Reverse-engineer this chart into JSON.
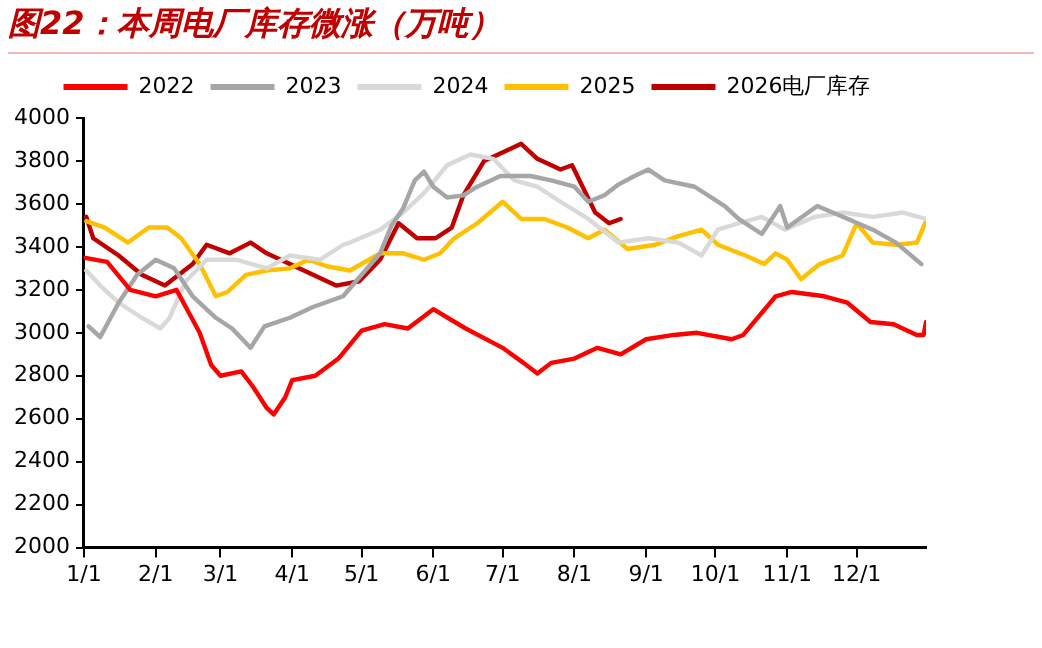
{
  "chart_data": {
    "type": "line",
    "title": "图22：本周电厂库存微涨（万吨）",
    "xlim": [
      "--01-01",
      "--12-31"
    ],
    "xticks": [
      {
        "value": "--01-01",
        "label": "1/1"
      },
      {
        "value": "--02-01",
        "label": "2/1"
      },
      {
        "value": "--03-01",
        "label": "3/1"
      },
      {
        "value": "--04-01",
        "label": "4/1"
      },
      {
        "value": "--05-01",
        "label": "5/1"
      },
      {
        "value": "--06-01",
        "label": "6/1"
      },
      {
        "value": "--07-01",
        "label": "7/1"
      },
      {
        "value": "--08-01",
        "label": "8/1"
      },
      {
        "value": "--09-01",
        "label": "9/1"
      },
      {
        "value": "--10-01",
        "label": "10/1"
      },
      {
        "value": "--11-01",
        "label": "11/1"
      },
      {
        "value": "--12-01",
        "label": "12/1"
      }
    ],
    "ylim": [
      2000,
      4000
    ],
    "yticks": [
      2000,
      2200,
      2400,
      2600,
      2800,
      3000,
      3200,
      3400,
      3600,
      3800,
      4000
    ],
    "grid": false,
    "legend": "top",
    "marker": "none",
    "line_style": "solid",
    "series": [
      {
        "name": "2022",
        "color": "#ff0000",
        "x": [
          "--01-01",
          "--01-11",
          "--01-21",
          "--02-01",
          "--02-10",
          "--02-15",
          "--02-20",
          "--02-25",
          "--03-01",
          "--03-10",
          "--03-15",
          "--03-21",
          "--03-24",
          "--03-29",
          "--04-01",
          "--04-11",
          "--04-21",
          "--05-01",
          "--05-11",
          "--05-21",
          "--06-01",
          "--06-15",
          "--07-01",
          "--07-10",
          "--07-16",
          "--07-22",
          "--08-01",
          "--08-11",
          "--08-21",
          "--09-01",
          "--09-13",
          "--09-23",
          "--10-08",
          "--10-13",
          "--10-27",
          "--11-03",
          "--11-17",
          "--11-27",
          "--12-07",
          "--12-17",
          "--12-27",
          "--12-30",
          "--12-31"
        ],
        "values": [
          3350,
          3330,
          3200,
          3170,
          3200,
          3100,
          3000,
          2850,
          2800,
          2820,
          2750,
          2650,
          2620,
          2700,
          2780,
          2800,
          2880,
          3010,
          3040,
          3020,
          3110,
          3020,
          2930,
          2860,
          2810,
          2860,
          2880,
          2930,
          2900,
          2970,
          2990,
          3000,
          2970,
          2990,
          3170,
          3190,
          3170,
          3140,
          3050,
          3040,
          2990,
          2990,
          3050
        ]
      },
      {
        "name": "2023",
        "color": "#a6a6a6",
        "x": [
          "--01-03",
          "--01-08",
          "--01-16",
          "--01-24",
          "--02-01",
          "--02-09",
          "--02-17",
          "--02-27",
          "--03-06",
          "--03-14",
          "--03-20",
          "--03-31",
          "--04-10",
          "--04-23",
          "--05-09",
          "--05-14",
          "--05-19",
          "--05-24",
          "--05-28",
          "--06-01",
          "--06-07",
          "--06-14",
          "--06-20",
          "--06-30",
          "--07-06",
          "--07-13",
          "--07-22",
          "--08-01",
          "--08-07",
          "--08-14",
          "--08-20",
          "--08-27",
          "--09-02",
          "--09-09",
          "--09-22",
          "--10-05",
          "--10-11",
          "--10-21",
          "--10-29",
          "--11-01",
          "--11-14",
          "--11-25",
          "--12-08",
          "--12-18",
          "--12-29"
        ],
        "values": [
          3030,
          2980,
          3140,
          3270,
          3340,
          3300,
          3170,
          3070,
          3020,
          2930,
          3030,
          3070,
          3120,
          3170,
          3370,
          3500,
          3580,
          3710,
          3750,
          3680,
          3630,
          3640,
          3680,
          3730,
          3730,
          3730,
          3710,
          3680,
          3610,
          3640,
          3690,
          3730,
          3760,
          3710,
          3680,
          3590,
          3530,
          3460,
          3590,
          3490,
          3590,
          3540,
          3480,
          3420,
          3320
        ]
      },
      {
        "name": "2024",
        "color": "#d9d9d9",
        "x": [
          "--01-02",
          "--01-08",
          "--01-16",
          "--01-26",
          "--02-03",
          "--02-07",
          "--02-14",
          "--02-23",
          "--03-08",
          "--03-21",
          "--03-31",
          "--04-13",
          "--04-23",
          "--04-26",
          "--05-09",
          "--05-19",
          "--05-28",
          "--06-07",
          "--06-17",
          "--06-27",
          "--07-06",
          "--07-16",
          "--07-26",
          "--08-07",
          "--08-20",
          "--09-02",
          "--09-15",
          "--09-25",
          "--10-02",
          "--10-11",
          "--10-21",
          "--10-31",
          "--11-13",
          "--11-25",
          "--12-08",
          "--12-21",
          "--12-31"
        ],
        "values": [
          3290,
          3220,
          3140,
          3070,
          3020,
          3070,
          3240,
          3340,
          3340,
          3300,
          3360,
          3340,
          3410,
          3420,
          3480,
          3560,
          3650,
          3780,
          3830,
          3810,
          3710,
          3680,
          3610,
          3530,
          3420,
          3440,
          3420,
          3360,
          3480,
          3510,
          3540,
          3480,
          3540,
          3560,
          3540,
          3560,
          3530
        ]
      },
      {
        "name": "2025",
        "color": "#ffc000",
        "x": [
          "--01-02",
          "--01-10",
          "--01-20",
          "--01-29",
          "--02-06",
          "--02-12",
          "--02-20",
          "--02-27",
          "--03-04",
          "--03-12",
          "--03-21",
          "--03-31",
          "--04-08",
          "--04-16",
          "--04-26",
          "--05-09",
          "--05-19",
          "--05-28",
          "--06-04",
          "--06-10",
          "--06-20",
          "--07-01",
          "--07-09",
          "--07-19",
          "--07-29",
          "--08-07",
          "--08-14",
          "--08-24",
          "--09-05",
          "--09-15",
          "--09-25",
          "--10-02",
          "--10-14",
          "--10-22",
          "--10-27",
          "--11-01",
          "--11-07",
          "--11-15",
          "--11-25",
          "--12-01",
          "--12-08",
          "--12-18",
          "--12-27",
          "--12-31"
        ],
        "values": [
          3520,
          3490,
          3420,
          3490,
          3490,
          3440,
          3320,
          3170,
          3190,
          3270,
          3290,
          3300,
          3340,
          3310,
          3290,
          3370,
          3370,
          3340,
          3370,
          3440,
          3510,
          3610,
          3530,
          3530,
          3490,
          3440,
          3480,
          3390,
          3410,
          3450,
          3480,
          3410,
          3360,
          3320,
          3370,
          3340,
          3250,
          3320,
          3360,
          3510,
          3420,
          3410,
          3420,
          3520
        ]
      },
      {
        "name": "2026电厂库存",
        "color": "#c00000",
        "x": [
          "--01-02",
          "--01-05",
          "--01-16",
          "--01-26",
          "--02-05",
          "--02-11",
          "--02-17",
          "--02-23",
          "--03-05",
          "--03-14",
          "--03-21",
          "--03-31",
          "--04-10",
          "--04-20",
          "--04-30",
          "--05-09",
          "--05-17",
          "--05-25",
          "--06-02",
          "--06-09",
          "--06-14",
          "--06-23",
          "--07-03",
          "--07-09",
          "--07-16",
          "--07-26",
          "--07-31",
          "--08-10",
          "--08-16",
          "--08-21"
        ],
        "values": [
          3540,
          3440,
          3360,
          3270,
          3220,
          3270,
          3320,
          3410,
          3370,
          3420,
          3370,
          3320,
          3270,
          3220,
          3240,
          3340,
          3510,
          3440,
          3440,
          3490,
          3640,
          3800,
          3850,
          3880,
          3810,
          3760,
          3780,
          3560,
          3510,
          3530
        ]
      }
    ]
  }
}
